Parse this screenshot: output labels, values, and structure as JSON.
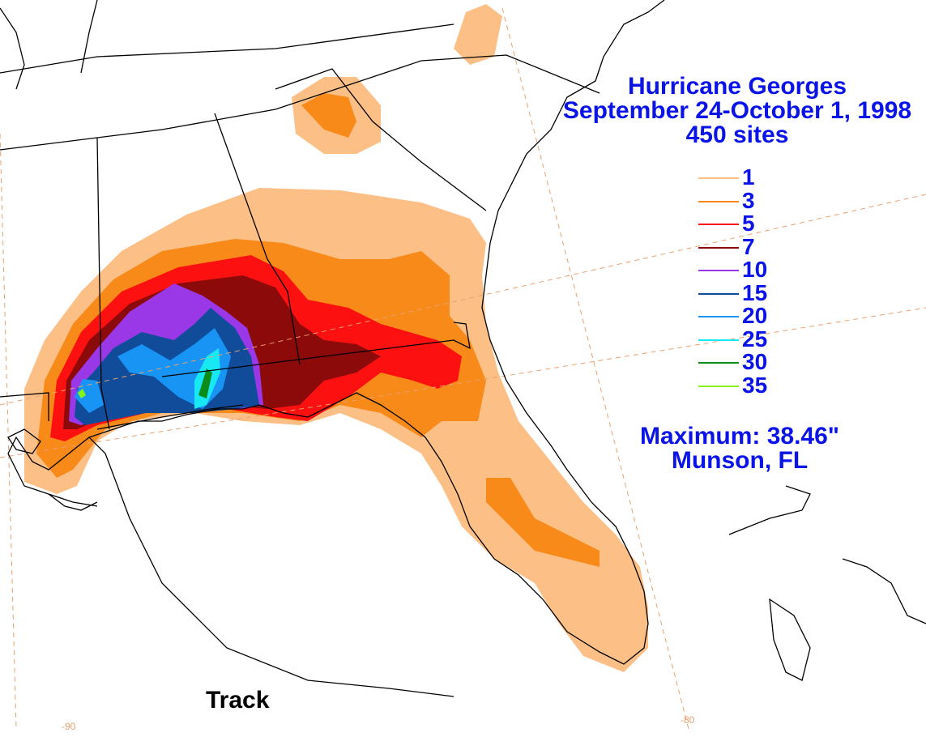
{
  "title": {
    "line1": "Hurricane Georges",
    "line2": "September 24-October 1, 1998",
    "line3": "450 sites"
  },
  "legend": [
    {
      "label": "1",
      "color": "#fcbf86"
    },
    {
      "label": "3",
      "color": "#f88a1a"
    },
    {
      "label": "5",
      "color": "#fc1010"
    },
    {
      "label": "7",
      "color": "#8c0a0a"
    },
    {
      "label": "10",
      "color": "#9a38e8"
    },
    {
      "label": "15",
      "color": "#104c9a"
    },
    {
      "label": "20",
      "color": "#1894f4"
    },
    {
      "label": "25",
      "color": "#18e8f4"
    },
    {
      "label": "30",
      "color": "#0a8c1a"
    },
    {
      "label": "35",
      "color": "#86f418"
    }
  ],
  "maximum": {
    "line1": "Maximum:  38.46\"",
    "line2": "Munson, FL"
  },
  "track_label": "Track",
  "longitude_labels": [
    "-90",
    "-80"
  ],
  "colors": {
    "text": "#0a14e6",
    "graticule": "#e8a070",
    "outline": "#000000"
  }
}
